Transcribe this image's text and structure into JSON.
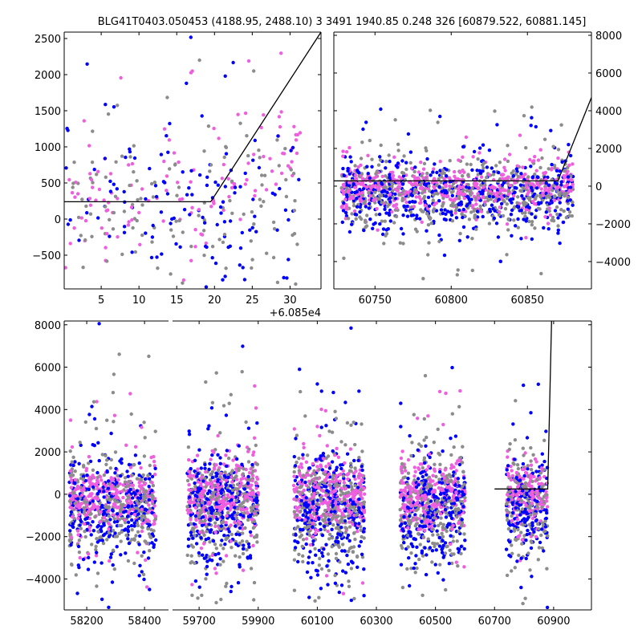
{
  "chart_data": {
    "type": "scatter",
    "title": "BLG41T0403.050453 (4188.95, 2488.10)   3 3491 1940.85 0.248 326 [60879.522, 60881.145]",
    "colors": {
      "gray": "#8c8c8c",
      "blue": "#0000ff",
      "pink": "#f05ee0",
      "line": "#000000"
    },
    "panels": [
      {
        "id": "top-left",
        "xlim": [
          0.1,
          34.1
        ],
        "ylim": [
          -967,
          2589
        ],
        "x_offset_label": "+6.085e4",
        "xticks": [
          5,
          10,
          15,
          20,
          25,
          30
        ],
        "yticks": [
          -500,
          0,
          500,
          1000,
          1500,
          2000,
          2500
        ],
        "ytick_side": "left",
        "fit_line": [
          [
            0.1,
            240
          ],
          [
            19.5,
            240
          ],
          [
            34.1,
            2589
          ]
        ],
        "clusters": [
          {
            "x": [
              0.1,
              31.5
            ],
            "y_center": 240,
            "y_spread": 420,
            "n": 380,
            "rise_after": 20,
            "rise_slope": 90
          }
        ]
      },
      {
        "id": "top-right",
        "xlim": [
          60723,
          60892
        ],
        "ylim": [
          -5450,
          8170
        ],
        "xticks": [
          60750,
          60800,
          60850
        ],
        "yticks": [
          -4000,
          -2000,
          0,
          2000,
          4000,
          6000,
          8000
        ],
        "ytick_side": "right",
        "fit_line": [
          [
            60723,
            280
          ],
          [
            60870,
            280
          ],
          [
            60892,
            4700
          ]
        ],
        "clusters": [
          {
            "x": [
              60728,
              60880
            ],
            "y_center": 0,
            "y_spread": 700,
            "n": 1500
          }
        ]
      },
      {
        "id": "bottom",
        "broken_x": [
          [
            58122,
            58483
          ],
          [
            59610,
            61028
          ]
        ],
        "ylim": [
          -5460,
          8180
        ],
        "xticks": [
          58200,
          58400,
          59700,
          59900,
          60100,
          60300,
          60500,
          60700,
          60900
        ],
        "yticks": [
          -4000,
          -2000,
          0,
          2000,
          4000,
          6000,
          8000
        ],
        "ytick_side": "left",
        "fit_line": [
          [
            60700,
            250
          ],
          [
            60880,
            250
          ],
          [
            60893,
            8180
          ]
        ],
        "clusters": [
          {
            "x": [
              58140,
              58440
            ],
            "y_center": -100,
            "y_spread": 900,
            "n": 900
          },
          {
            "x": [
              59660,
              59900
            ],
            "y_center": -100,
            "y_spread": 1000,
            "n": 900
          },
          {
            "x": [
              60020,
              60260
            ],
            "y_center": -100,
            "y_spread": 1000,
            "n": 900
          },
          {
            "x": [
              60380,
              60600
            ],
            "y_center": -100,
            "y_spread": 950,
            "n": 800
          },
          {
            "x": [
              60740,
              60880
            ],
            "y_center": -100,
            "y_spread": 900,
            "n": 500
          }
        ]
      }
    ]
  }
}
